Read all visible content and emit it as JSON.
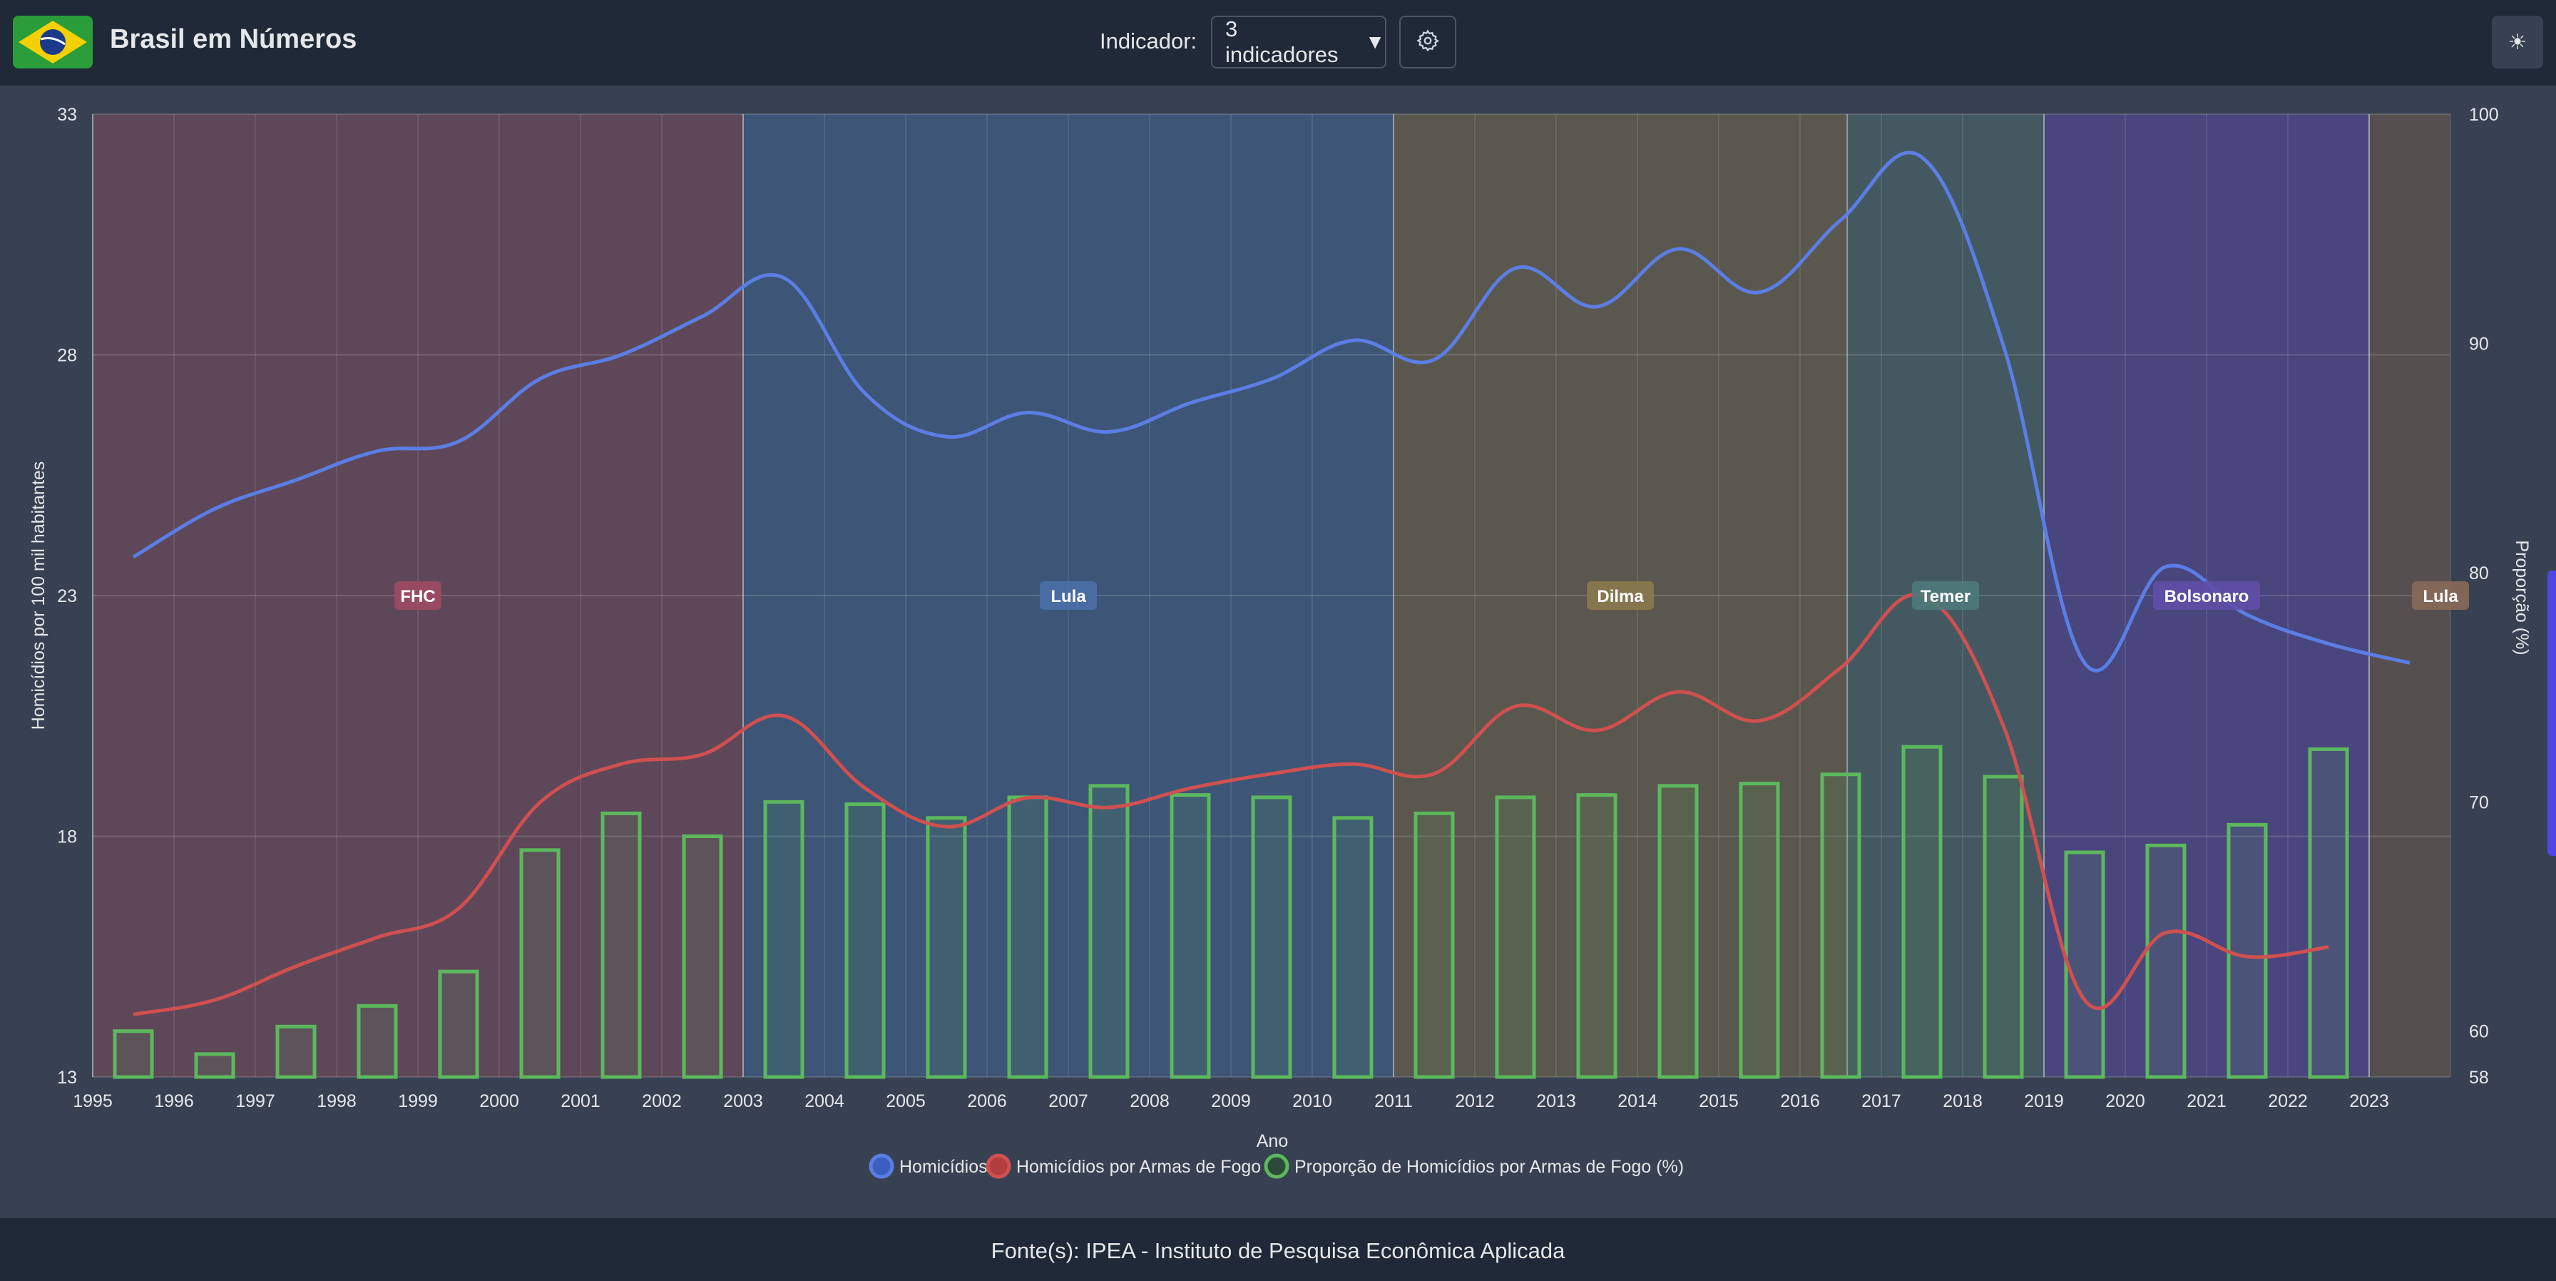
{
  "header": {
    "title": "Brasil em Números",
    "indicator_label": "Indicador:",
    "indicator_value": "3 indicadores"
  },
  "footer": {
    "source": "Fonte(s): IPEA - Instituto de Pesquisa Econômica Aplicada"
  },
  "icons": {
    "logo": "brazil-flag-icon",
    "settings": "gear-icon",
    "theme": "sun-icon",
    "dropdown": "caret-down-icon"
  },
  "colors": {
    "homicidios": "#5b7ee5",
    "armas": "#d0504f",
    "proporcao": "#5cb85c"
  },
  "chart_data": {
    "type": "line",
    "xlabel": "Ano",
    "ylabel_left": "Homicídios por 100 mil habitantes",
    "ylabel_right": "Proporção (%)",
    "x_ticks": [
      "1995",
      "1996",
      "1997",
      "1998",
      "1999",
      "2000",
      "2001",
      "2002",
      "2003",
      "2004",
      "2005",
      "2006",
      "2007",
      "2008",
      "2009",
      "2010",
      "2011",
      "2012",
      "2013",
      "2014",
      "2015",
      "2016",
      "2017",
      "2018",
      "2019",
      "2020",
      "2021",
      "2022",
      "2023"
    ],
    "y_left": {
      "min": 13,
      "max": 33,
      "ticks": [
        "13",
        "18",
        "23",
        "28",
        "33"
      ]
    },
    "y_right": {
      "min": 58,
      "max": 100,
      "ticks": [
        "58",
        "60",
        "70",
        "80",
        "90",
        "100"
      ]
    },
    "grid": true,
    "legend_position": "bottom",
    "series": [
      {
        "name": "Homicídios",
        "type": "line",
        "axis": "left",
        "x": [
          1995.5,
          1996.5,
          1997.5,
          1998.5,
          1999.5,
          2000.5,
          2001.5,
          2002.5,
          2003.5,
          2004.5,
          2005.5,
          2006.5,
          2007.5,
          2008.5,
          2009.5,
          2010.5,
          2011.5,
          2012.5,
          2013.5,
          2014.5,
          2015.5,
          2016.5,
          2017.5,
          2018.5,
          2019.5,
          2020.5,
          2021.5,
          2022.5,
          2023.5
        ],
        "values": [
          23.8,
          24.8,
          25.4,
          26.0,
          26.2,
          27.5,
          28.0,
          28.8,
          29.6,
          27.2,
          26.3,
          26.8,
          26.4,
          27.0,
          27.5,
          28.3,
          27.9,
          29.8,
          29.0,
          30.2,
          29.3,
          30.8,
          32.1,
          28.2,
          21.6,
          23.6,
          22.6,
          22.0,
          21.6
        ]
      },
      {
        "name": "Homicídios por Armas de Fogo",
        "type": "line",
        "axis": "left",
        "x": [
          1995.5,
          1996.5,
          1997.5,
          1998.5,
          1999.5,
          2000.5,
          2001.5,
          2002.5,
          2003.5,
          2004.5,
          2005.5,
          2006.5,
          2007.5,
          2008.5,
          2009.5,
          2010.5,
          2011.5,
          2012.5,
          2013.5,
          2014.5,
          2015.5,
          2016.5,
          2017.5,
          2018.5,
          2019.5,
          2020.5,
          2021.5,
          2022.5
        ],
        "values": [
          14.3,
          14.6,
          15.3,
          15.9,
          16.5,
          18.7,
          19.5,
          19.7,
          20.5,
          19.0,
          18.2,
          18.8,
          18.6,
          19.0,
          19.3,
          19.5,
          19.3,
          20.7,
          20.2,
          21.0,
          20.4,
          21.5,
          23.0,
          20.3,
          14.6,
          16.0,
          15.5,
          15.7
        ]
      },
      {
        "name": "Proporção de Homicídios por Armas de Fogo (%)",
        "type": "bar",
        "axis": "right",
        "x": [
          1995.5,
          1996.5,
          1997.5,
          1998.5,
          1999.5,
          2000.5,
          2001.5,
          2002.5,
          2003.5,
          2004.5,
          2005.5,
          2006.5,
          2007.5,
          2008.5,
          2009.5,
          2010.5,
          2011.5,
          2012.5,
          2013.5,
          2014.5,
          2015.5,
          2016.5,
          2017.5,
          2018.5,
          2019.5,
          2020.5,
          2021.5,
          2022.5
        ],
        "values": [
          60.0,
          59.0,
          60.2,
          61.1,
          62.6,
          67.9,
          69.5,
          68.5,
          70.0,
          69.9,
          69.3,
          70.2,
          70.7,
          70.3,
          70.2,
          69.3,
          69.5,
          70.2,
          70.3,
          70.7,
          70.8,
          71.2,
          72.4,
          71.1,
          67.8,
          68.1,
          69.0,
          72.3
        ]
      }
    ],
    "bands": [
      {
        "label": "FHC",
        "start": 1995,
        "end": 2003,
        "fill": "#7c4a5e",
        "tag": "#9e4a62"
      },
      {
        "label": "Lula",
        "start": 2003,
        "end": 2011,
        "fill": "#3f6493",
        "tag": "#4a70a8"
      },
      {
        "label": "Dilma",
        "start": 2011,
        "end": 2016.58,
        "fill": "#72684a",
        "tag": "#8a7a4e"
      },
      {
        "label": "Temer",
        "start": 2016.58,
        "end": 2019,
        "fill": "#4d6a6e",
        "tag": "#4e7a7a"
      },
      {
        "label": "Bolsonaro",
        "start": 2019,
        "end": 2023,
        "fill": "#5548a0",
        "tag": "#5f4fa8"
      },
      {
        "label": "Lula",
        "start": 2023,
        "end": 2024,
        "fill": "#6b5a4e",
        "tag": "#8a6a58"
      }
    ]
  }
}
